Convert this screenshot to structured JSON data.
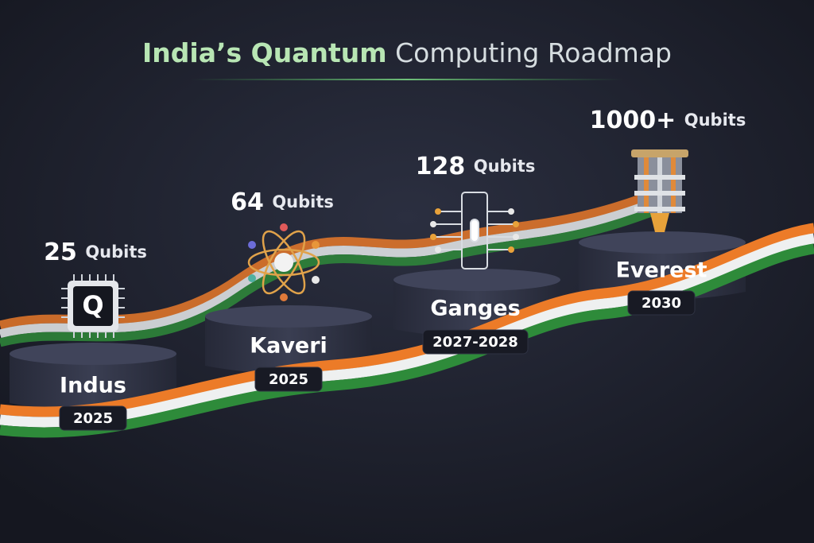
{
  "title": {
    "bold": "India’s Quantum",
    "regular": "Computing Roadmap"
  },
  "milestones": [
    {
      "qubits": "25",
      "unit": "Qubits",
      "name": "Indus",
      "year": "2025"
    },
    {
      "qubits": "64",
      "unit": "Qubits",
      "name": "Kaveri",
      "year": "2025"
    },
    {
      "qubits": "128",
      "unit": "Qubits",
      "name": "Ganges",
      "year": "2027-2028"
    },
    {
      "qubits": "1000+",
      "unit": "Qubits",
      "name": "Everest",
      "year": "2030"
    }
  ]
}
